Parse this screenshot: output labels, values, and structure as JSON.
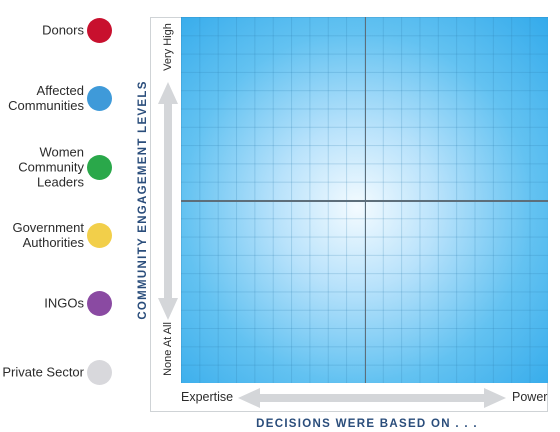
{
  "legend": {
    "items": [
      {
        "label": "Donors",
        "color": "#c8102e"
      },
      {
        "label": "Affected Communities",
        "color": "#3f9ad9"
      },
      {
        "label": "Women Community Leaders",
        "color": "#2aa84a"
      },
      {
        "label": "Government Authorities",
        "color": "#f2cf4a"
      },
      {
        "label": "INGOs",
        "color": "#8a4aa2"
      },
      {
        "label": "Private Sector",
        "color": "#d8d8dc"
      }
    ]
  },
  "y_axis": {
    "title": "COMMUNITY ENGAGEMENT LEVELS",
    "top_label": "Very High",
    "bottom_label": "None At All"
  },
  "x_axis": {
    "title": "DECISIONS WERE BASED ON . . .",
    "left_label": "Expertise",
    "right_label": "Power"
  },
  "colors": {
    "axis_title": "#2a4d7b",
    "grid_gradient_center": "#f4fbff",
    "grid_gradient_edge": "#33aaeb",
    "arrow": "#d4d6d9"
  }
}
